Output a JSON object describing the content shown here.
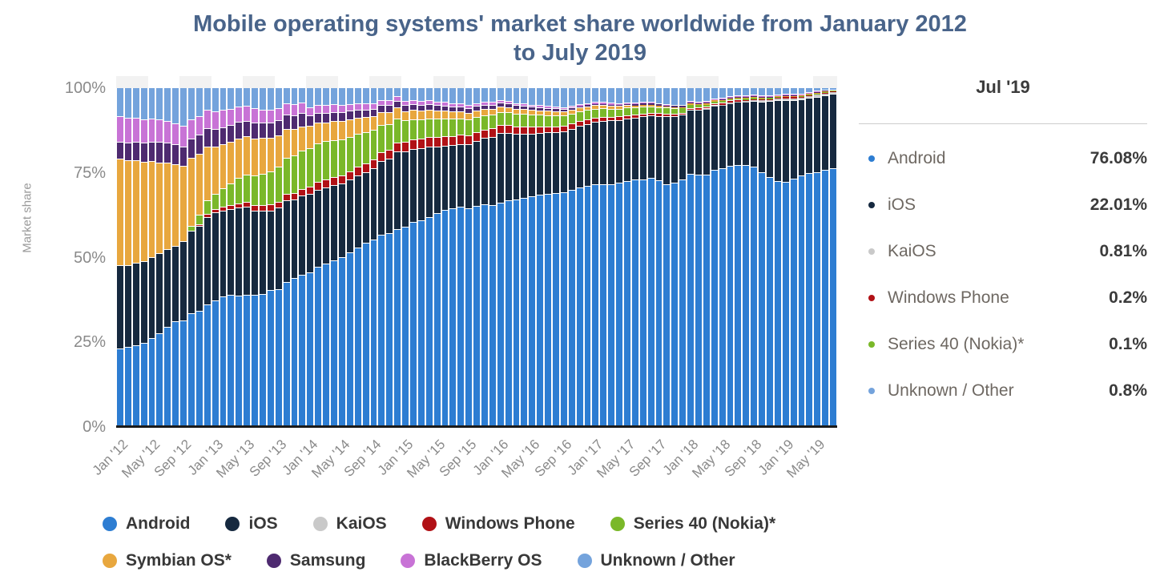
{
  "chart_data": {
    "type": "bar",
    "stacked": true,
    "title": "Mobile operating systems' market share worldwide from January 2012 to July 2019",
    "ylabel": "Market share",
    "xlabel": "",
    "ylim": [
      0,
      100
    ],
    "yticks": [
      "0%",
      "25%",
      "50%",
      "75%",
      "100%"
    ],
    "grid": false,
    "legend_position": "bottom",
    "x_tick_labels": [
      "Jan '12",
      "May '12",
      "Sep '12",
      "Jan '13",
      "May '13",
      "Sep '13",
      "Jan '14",
      "May '14",
      "Sep '14",
      "Jan '15",
      "May '15",
      "Sep '15",
      "Jan '16",
      "May '16",
      "Sep '16",
      "Jan '17",
      "May '17",
      "Sep '17",
      "Jan '18",
      "May '18",
      "Sep '18",
      "Jan '19",
      "May '19"
    ],
    "tick_every_n_categories": 4,
    "categories": [
      "Jan '12",
      "Feb '12",
      "Mar '12",
      "Apr '12",
      "May '12",
      "Jun '12",
      "Jul '12",
      "Aug '12",
      "Sep '12",
      "Oct '12",
      "Nov '12",
      "Dec '12",
      "Jan '13",
      "Feb '13",
      "Mar '13",
      "Apr '13",
      "May '13",
      "Jun '13",
      "Jul '13",
      "Aug '13",
      "Sep '13",
      "Oct '13",
      "Nov '13",
      "Dec '13",
      "Jan '14",
      "Feb '14",
      "Mar '14",
      "Apr '14",
      "May '14",
      "Jun '14",
      "Jul '14",
      "Aug '14",
      "Sep '14",
      "Oct '14",
      "Nov '14",
      "Dec '14",
      "Jan '15",
      "Feb '15",
      "Mar '15",
      "Apr '15",
      "May '15",
      "Jun '15",
      "Jul '15",
      "Aug '15",
      "Sep '15",
      "Oct '15",
      "Nov '15",
      "Dec '15",
      "Jan '16",
      "Feb '16",
      "Mar '16",
      "Apr '16",
      "May '16",
      "Jun '16",
      "Jul '16",
      "Aug '16",
      "Sep '16",
      "Oct '16",
      "Nov '16",
      "Dec '16",
      "Jan '17",
      "Feb '17",
      "Mar '17",
      "Apr '17",
      "May '17",
      "Jun '17",
      "Jul '17",
      "Aug '17",
      "Sep '17",
      "Oct '17",
      "Nov '17",
      "Dec '17",
      "Jan '18",
      "Feb '18",
      "Mar '18",
      "Apr '18",
      "May '18",
      "Jun '18",
      "Jul '18",
      "Aug '18",
      "Sep '18",
      "Oct '18",
      "Nov '18",
      "Dec '18",
      "Jan '19",
      "Feb '19",
      "Mar '19",
      "Apr '19",
      "May '19",
      "Jun '19",
      "Jul '19"
    ],
    "series": [
      {
        "name": "Android",
        "color": "#2d7dd2",
        "values": [
          23.0,
          23.5,
          23.8,
          24.5,
          26.0,
          27.5,
          29.3,
          31.0,
          31.3,
          33.3,
          34.0,
          36.0,
          37.2,
          38.2,
          38.7,
          38.6,
          38.8,
          38.8,
          39.1,
          40.1,
          40.5,
          42.5,
          43.8,
          44.8,
          45.5,
          47.0,
          48.0,
          49.0,
          49.8,
          51.2,
          52.8,
          54.2,
          55.0,
          56.5,
          57.0,
          58.2,
          58.8,
          60.2,
          60.8,
          61.8,
          62.8,
          63.8,
          64.3,
          64.8,
          64.3,
          64.9,
          65.4,
          65.3,
          66.0,
          66.6,
          66.8,
          67.3,
          67.8,
          68.3,
          68.5,
          68.8,
          69.1,
          69.8,
          70.5,
          70.9,
          71.3,
          71.5,
          71.5,
          71.8,
          72.3,
          72.7,
          72.9,
          73.2,
          72.5,
          71.5,
          71.8,
          72.8,
          74.4,
          74.2,
          74.4,
          75.7,
          76.1,
          76.9,
          77.3,
          77.1,
          76.7,
          75.0,
          73.6,
          72.4,
          72.2,
          73.3,
          74.2,
          74.9,
          75.3,
          76.0,
          76.08
        ]
      },
      {
        "name": "iOS",
        "color": "#16293f",
        "values": [
          24.5,
          24.1,
          24.4,
          24.2,
          24.0,
          23.6,
          23.0,
          22.2,
          23.2,
          24.4,
          25.0,
          25.8,
          25.9,
          25.5,
          25.3,
          25.9,
          25.9,
          24.9,
          24.5,
          23.6,
          24.0,
          24.2,
          23.1,
          23.2,
          23.0,
          22.7,
          22.5,
          22.1,
          21.9,
          21.6,
          21.2,
          20.8,
          21.2,
          21.7,
          22.0,
          22.9,
          22.4,
          21.6,
          21.2,
          20.7,
          19.8,
          19.0,
          18.7,
          18.5,
          18.9,
          19.3,
          19.6,
          20.1,
          20.5,
          19.9,
          19.5,
          19.1,
          18.6,
          18.3,
          18.2,
          18.0,
          17.9,
          18.0,
          18.1,
          18.3,
          18.5,
          18.6,
          18.7,
          18.6,
          18.5,
          18.3,
          18.5,
          18.5,
          19.1,
          20.1,
          19.8,
          19.1,
          19.0,
          19.3,
          19.3,
          18.9,
          18.8,
          18.6,
          18.5,
          18.8,
          19.4,
          21.0,
          22.5,
          24.0,
          24.4,
          23.3,
          22.5,
          22.3,
          22.3,
          22.1,
          22.01
        ]
      },
      {
        "name": "KaiOS",
        "color": "#c9c9c9",
        "values": [
          0,
          0,
          0,
          0,
          0,
          0,
          0,
          0,
          0,
          0,
          0,
          0,
          0,
          0,
          0,
          0,
          0,
          0,
          0,
          0,
          0,
          0,
          0,
          0,
          0,
          0,
          0,
          0,
          0,
          0,
          0,
          0,
          0,
          0,
          0,
          0,
          0,
          0,
          0,
          0,
          0,
          0,
          0,
          0,
          0,
          0,
          0,
          0,
          0,
          0,
          0,
          0,
          0,
          0,
          0,
          0,
          0,
          0,
          0,
          0,
          0,
          0,
          0,
          0,
          0,
          0,
          0,
          0,
          0,
          0,
          0,
          0,
          0,
          0,
          0.1,
          0.2,
          0.3,
          0.35,
          0.4,
          0.45,
          0.5,
          0.55,
          0.6,
          0.65,
          0.7,
          0.72,
          0.75,
          0.78,
          0.8,
          0.8,
          0.81
        ]
      },
      {
        "name": "Windows Phone",
        "color": "#b11116",
        "values": [
          0,
          0,
          0,
          0,
          0,
          0,
          0,
          0,
          0,
          0,
          0.5,
          0.8,
          1.0,
          1.1,
          1.2,
          1.3,
          1.4,
          1.5,
          1.6,
          1.7,
          1.8,
          1.9,
          2.0,
          2.1,
          2.2,
          2.3,
          2.3,
          2.4,
          2.4,
          2.5,
          2.5,
          2.5,
          2.6,
          2.6,
          2.6,
          2.7,
          2.7,
          2.8,
          2.8,
          2.8,
          2.8,
          2.8,
          2.7,
          2.7,
          2.6,
          2.6,
          2.5,
          2.5,
          2.4,
          2.3,
          2.2,
          2.1,
          2.0,
          1.9,
          1.8,
          1.7,
          1.6,
          1.5,
          1.4,
          1.3,
          1.3,
          1.2,
          1.1,
          1.0,
          1.0,
          0.9,
          0.9,
          0.8,
          0.8,
          0.7,
          0.7,
          0.6,
          0.6,
          0.55,
          0.5,
          0.5,
          0.45,
          0.4,
          0.4,
          0.35,
          0.35,
          0.3,
          0.3,
          0.28,
          0.26,
          0.25,
          0.24,
          0.23,
          0.22,
          0.21,
          0.2
        ]
      },
      {
        "name": "Series 40 (Nokia)*",
        "color": "#7ab829",
        "values": [
          0,
          0,
          0,
          0,
          0,
          0,
          0,
          0,
          0,
          1.5,
          3.0,
          4.0,
          4.5,
          5.5,
          6.5,
          7.5,
          8.2,
          8.8,
          9.3,
          9.8,
          10.2,
          10.6,
          10.9,
          11.2,
          11.4,
          11.5,
          11.3,
          10.9,
          10.5,
          10.1,
          9.7,
          9.2,
          8.6,
          8.0,
          7.5,
          7.0,
          6.3,
          6.0,
          5.8,
          5.6,
          5.4,
          5.2,
          5.0,
          4.9,
          4.7,
          4.5,
          4.3,
          4.1,
          3.9,
          3.8,
          3.7,
          3.6,
          3.5,
          3.4,
          3.3,
          3.2,
          3.1,
          3.0,
          2.9,
          2.8,
          2.6,
          2.5,
          2.4,
          2.3,
          2.2,
          2.1,
          2.0,
          1.9,
          1.8,
          1.7,
          1.6,
          1.5,
          1.1,
          1.0,
          0.9,
          0.8,
          0.7,
          0.6,
          0.5,
          0.45,
          0.4,
          0.35,
          0.3,
          0.25,
          0.22,
          0.2,
          0.18,
          0.16,
          0.14,
          0.12,
          0.1
        ]
      },
      {
        "name": "Symbian OS*",
        "color": "#e8a73e",
        "values": [
          31.5,
          30.8,
          30.2,
          29.3,
          28.2,
          26.8,
          25.4,
          24.0,
          22.3,
          20.0,
          18.0,
          16.0,
          14.0,
          13.0,
          12.3,
          11.7,
          11.2,
          11.0,
          10.5,
          10.0,
          9.4,
          8.5,
          7.9,
          7.2,
          6.6,
          6.0,
          5.6,
          5.7,
          5.6,
          5.2,
          4.9,
          4.5,
          4.1,
          3.8,
          3.6,
          3.2,
          2.8,
          2.7,
          2.6,
          2.5,
          2.4,
          2.3,
          2.2,
          2.1,
          2.0,
          1.9,
          1.8,
          1.7,
          1.6,
          1.55,
          1.5,
          1.45,
          1.4,
          1.35,
          1.3,
          1.25,
          1.2,
          1.15,
          1.1,
          1.05,
          1.0,
          0.95,
          0.9,
          0.85,
          0.8,
          0.75,
          0.7,
          0.65,
          0.6,
          0.55,
          0.5,
          0.45,
          0.4,
          0.38,
          0.36,
          0.34,
          0.32,
          0.3,
          0.28,
          0.26,
          0.24,
          0.22,
          0.2,
          0.18,
          0.16,
          0.15,
          0.14,
          0.12,
          0.1,
          0.05,
          0
        ]
      },
      {
        "name": "Samsung",
        "color": "#4e2a70",
        "values": [
          5.0,
          5.3,
          5.5,
          5.6,
          5.8,
          6.0,
          6.0,
          6.0,
          5.8,
          5.6,
          5.5,
          5.3,
          5.2,
          5.0,
          4.9,
          4.8,
          4.7,
          4.6,
          4.5,
          4.4,
          4.3,
          4.2,
          4.1,
          4.0,
          3.0,
          2.9,
          2.8,
          2.7,
          2.6,
          2.5,
          2.4,
          2.3,
          2.2,
          2.1,
          2.0,
          1.9,
          1.8,
          1.7,
          1.65,
          1.6,
          1.55,
          1.5,
          1.45,
          1.4,
          1.35,
          1.3,
          1.25,
          1.2,
          1.15,
          1.1,
          1.05,
          1.0,
          0.95,
          0.9,
          0.85,
          0.8,
          0.75,
          0.7,
          0.65,
          0.6,
          0.58,
          0.55,
          0.53,
          0.5,
          0.48,
          0.45,
          0.43,
          0.4,
          0.38,
          0.35,
          0.33,
          0.3,
          0.25,
          0.23,
          0.21,
          0.19,
          0.17,
          0.15,
          0.13,
          0.12,
          0.11,
          0.1,
          0.09,
          0.08,
          0.07,
          0.07,
          0.06,
          0.06,
          0.05,
          0.05,
          0
        ]
      },
      {
        "name": "BlackBerry OS",
        "color": "#c873d6",
        "values": [
          7.5,
          7.3,
          7.2,
          7.0,
          6.8,
          6.6,
          6.4,
          6.2,
          6.0,
          5.8,
          5.6,
          5.4,
          5.2,
          5.0,
          4.8,
          4.6,
          4.4,
          4.2,
          4.0,
          3.8,
          3.6,
          3.4,
          3.2,
          3.0,
          2.5,
          2.4,
          2.3,
          2.2,
          2.1,
          2.0,
          1.9,
          1.8,
          1.7,
          1.6,
          1.5,
          1.4,
          1.3,
          1.25,
          1.2,
          1.15,
          1.1,
          1.05,
          1.0,
          0.95,
          0.9,
          0.85,
          0.8,
          0.75,
          0.7,
          0.68,
          0.65,
          0.63,
          0.6,
          0.58,
          0.55,
          0.53,
          0.5,
          0.48,
          0.45,
          0.43,
          0.4,
          0.38,
          0.35,
          0.33,
          0.3,
          0.28,
          0.26,
          0.24,
          0.22,
          0.2,
          0.18,
          0.16,
          0.14,
          0.13,
          0.12,
          0.11,
          0.1,
          0.09,
          0.08,
          0.08,
          0.07,
          0.07,
          0.06,
          0.06,
          0.05,
          0.05,
          0.05,
          0.05,
          0.05,
          0.05,
          0
        ]
      },
      {
        "name": "Unknown / Other",
        "color": "#74a3dc",
        "values": [
          8.5,
          9.0,
          8.9,
          9.4,
          9.2,
          9.5,
          9.9,
          10.6,
          11.4,
          9.4,
          8.4,
          6.7,
          7.0,
          6.7,
          6.3,
          5.6,
          5.4,
          6.2,
          6.5,
          6.6,
          6.2,
          4.7,
          5.0,
          4.5,
          5.8,
          5.2,
          5.2,
          5.0,
          5.1,
          4.9,
          4.6,
          4.7,
          4.6,
          3.7,
          3.8,
          2.7,
          3.9,
          3.75,
          3.95,
          3.85,
          4.15,
          4.35,
          4.65,
          4.65,
          5.25,
          4.65,
          4.35,
          4.35,
          3.75,
          4.07,
          4.6,
          4.82,
          5.15,
          5.27,
          5.5,
          5.72,
          5.85,
          5.37,
          4.9,
          4.62,
          4.32,
          4.32,
          4.52,
          4.62,
          4.42,
          4.52,
          4.31,
          4.31,
          4.6,
          4.9,
          5.09,
          5.09,
          4.11,
          4.21,
          4.11,
          3.26,
          3.06,
          2.61,
          2.41,
          2.39,
          2.23,
          2.41,
          2.35,
          2.1,
          1.94,
          1.96,
          1.88,
          1.4,
          1.04,
          0.62,
          0.8
        ]
      }
    ],
    "plot_band_color": "#f2f2f2"
  },
  "legend": {
    "row1": [
      "Android",
      "iOS",
      "KaiOS",
      "Windows Phone",
      "Series 40 (Nokia)*"
    ],
    "row2": [
      "Symbian OS*",
      "Samsung",
      "BlackBerry OS",
      "Unknown / Other"
    ]
  },
  "side_panel": {
    "header": "Jul '19",
    "rows": [
      {
        "label": "Android",
        "value": "76.08%",
        "series": "Android"
      },
      {
        "label": "iOS",
        "value": "22.01%",
        "series": "iOS"
      },
      {
        "label": "KaiOS",
        "value": "0.81%",
        "series": "KaiOS"
      },
      {
        "label": "Windows Phone",
        "value": "0.2%",
        "series": "Windows Phone"
      },
      {
        "label": "Series 40 (Nokia)*",
        "value": "0.1%",
        "series": "Series 40 (Nokia)*"
      },
      {
        "label": "Unknown / Other",
        "value": "0.8%",
        "series": "Unknown / Other"
      }
    ]
  }
}
